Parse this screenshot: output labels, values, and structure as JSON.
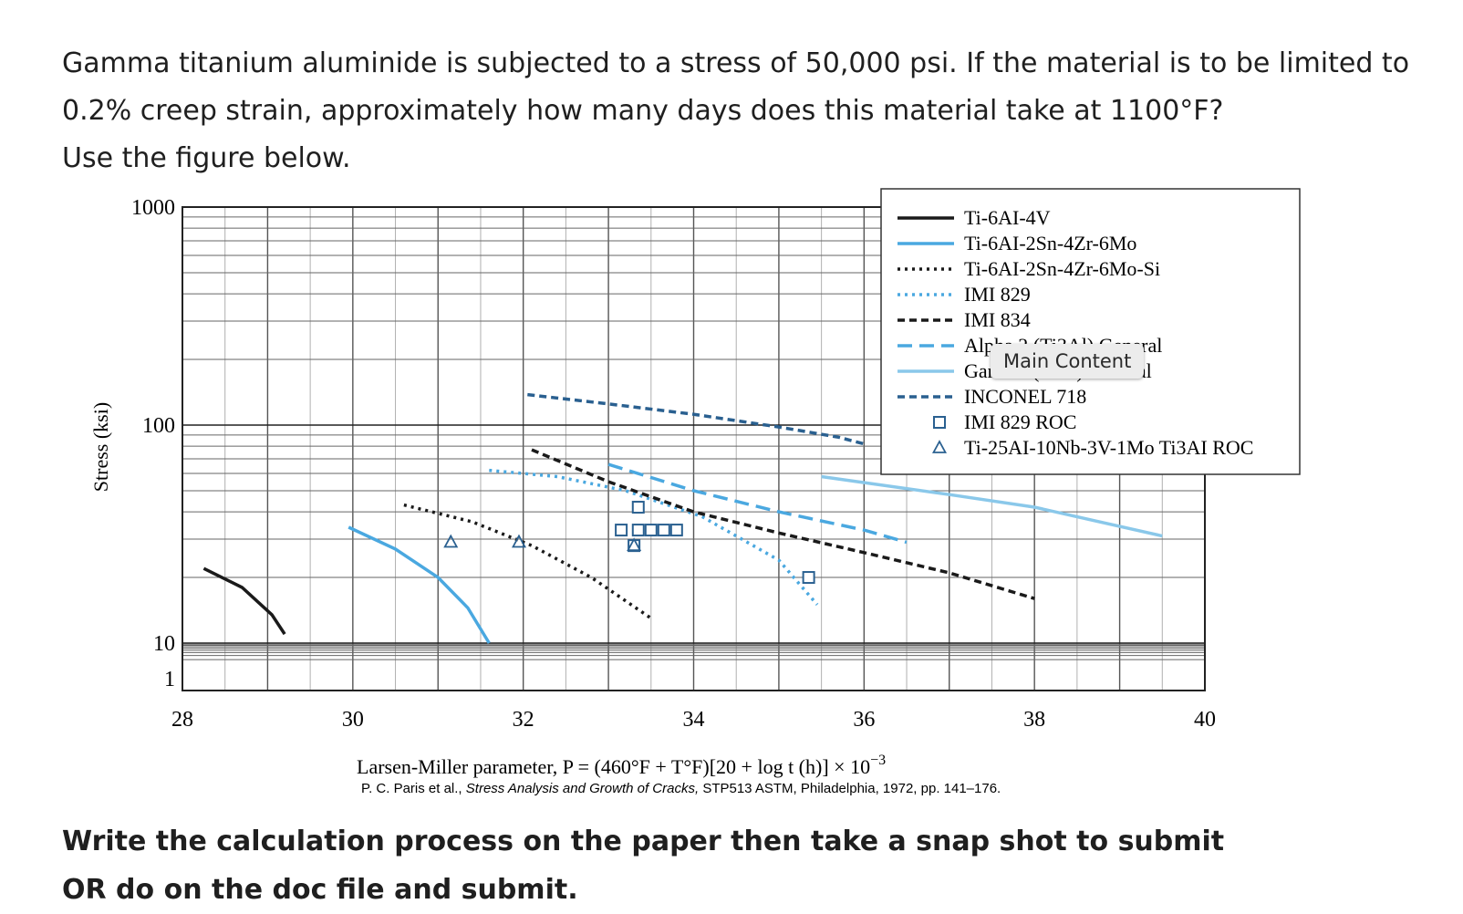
{
  "question": {
    "line1": "Gamma titanium aluminide is subjected to a stress of 50,000 psi. If the material is to be limited to",
    "line2": "0.2% creep strain, approximately how many days does this material take at 1100°F?",
    "line3": "Use the figure below."
  },
  "instructions": {
    "line1": "Write the calculation process on the paper then take a snap shot to submit",
    "line2": "OR do on the doc file and submit."
  },
  "tooltip": {
    "label": "Main Content"
  },
  "chart_data": {
    "type": "line",
    "ylabel": "Stress (ksi)",
    "xlabel": "Larsen-Miller parameter, P = (460°F + T°F)[20 + log t (h)] × 10",
    "xlabel_exp": "−3",
    "citation_prefix": "P. C. Paris et al., ",
    "citation_title": "Stress Analysis and Growth of Cracks,",
    "citation_suffix": " STP513 ASTM, Philadelphia, 1972, pp. 141–176.",
    "y_scale": "log",
    "ylim": [
      1,
      1000
    ],
    "xlim": [
      28,
      40
    ],
    "x_ticks": [
      "28",
      "30",
      "32",
      "34",
      "36",
      "38",
      "40"
    ],
    "y_ticks": [
      "1000",
      "100",
      "10",
      "1"
    ],
    "grid": true,
    "legend_position": "top-right",
    "series": [
      {
        "name": "Ti-6AI-4V",
        "color": "#1a1a1a",
        "style": "solid",
        "x": [
          28.25,
          28.7,
          29.05,
          29.2
        ],
        "y": [
          22,
          18,
          13.5,
          11
        ]
      },
      {
        "name": "Ti-6AI-2Sn-4Zr-6Mo",
        "color": "#4aa8e0",
        "style": "solid",
        "x": [
          29.95,
          30.5,
          31.0,
          31.35,
          31.6
        ],
        "y": [
          34,
          27,
          20,
          14.5,
          10
        ]
      },
      {
        "name": "Ti-6AI-2Sn-4Zr-6Mo-Si",
        "color": "#1a1a1a",
        "style": "dotted",
        "x": [
          30.6,
          31.4,
          32.1,
          32.8,
          33.5
        ],
        "y": [
          43,
          36,
          28,
          20,
          13
        ]
      },
      {
        "name": "IMI 829",
        "color": "#4aa8e0",
        "style": "dotted",
        "x": [
          31.6,
          32.4,
          33.2,
          34.1,
          35.0,
          35.45
        ],
        "y": [
          62,
          58,
          50,
          38,
          24,
          15
        ]
      },
      {
        "name": "IMI 834",
        "color": "#1a1a1a",
        "style": "dashed",
        "x": [
          32.1,
          33.0,
          34.0,
          35.0,
          36.0,
          37.0,
          38.0
        ],
        "y": [
          77,
          55,
          40,
          32,
          26,
          21,
          16
        ]
      },
      {
        "name": "Alpha 2 (Ti3Al) General",
        "color": "#4aa8e0",
        "style": "longdash",
        "x": [
          33.0,
          34.0,
          35.0,
          36.0,
          36.5
        ],
        "y": [
          66,
          50,
          40,
          33,
          29
        ]
      },
      {
        "name": "Gamma (TiAl) General",
        "color": "#8ac8ea",
        "style": "solid",
        "x": [
          35.5,
          37.0,
          38.0,
          39.5
        ],
        "y": [
          58,
          48,
          42,
          31
        ]
      },
      {
        "name": "INCONEL 718",
        "color": "#2a6090",
        "style": "dashed",
        "x": [
          32.05,
          33.0,
          34.0,
          35.0,
          35.7,
          36.0
        ],
        "y": [
          138,
          125,
          112,
          98,
          88,
          82
        ]
      }
    ],
    "scatter": [
      {
        "name": "IMI 829 ROC",
        "marker": "square",
        "color": "#2a6090",
        "x": [
          33.35,
          33.15,
          33.35,
          33.5,
          33.65,
          33.8,
          33.3,
          35.35
        ],
        "y": [
          42,
          33,
          33,
          33,
          33,
          33,
          28,
          20
        ]
      },
      {
        "name": "Ti-25AI-10Nb-3V-1Mo Ti3AI ROC",
        "marker": "triangle",
        "color": "#2a6090",
        "x": [
          31.15,
          31.95,
          33.3
        ],
        "y": [
          29,
          29,
          28
        ]
      }
    ]
  }
}
